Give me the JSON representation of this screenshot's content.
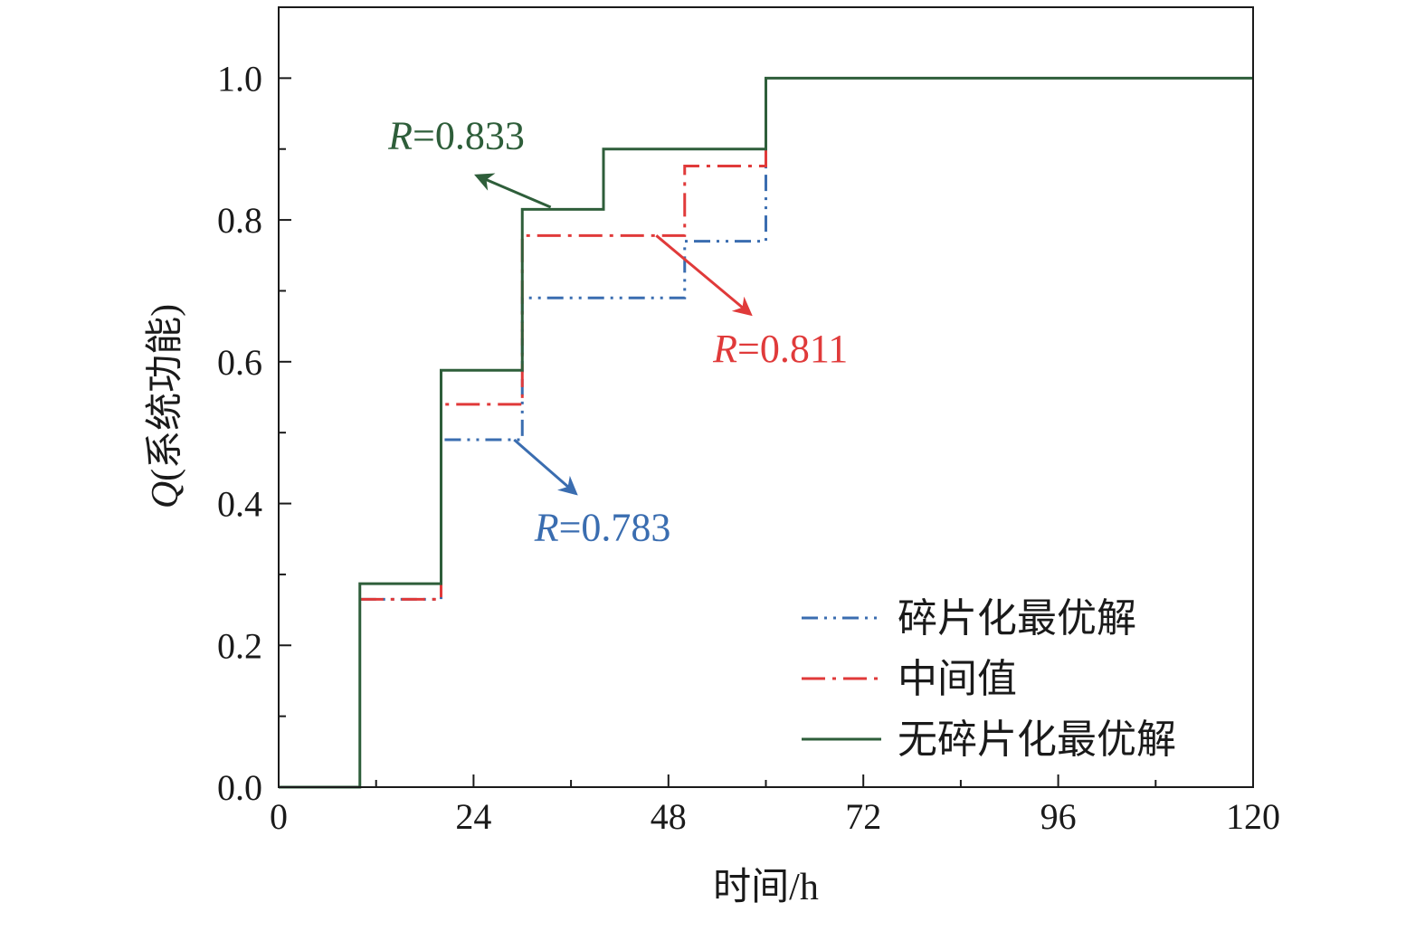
{
  "chart_data": {
    "type": "line",
    "line_shape": "step",
    "xlabel": "时间/h",
    "ylabel_var": "Q",
    "ylabel_text": "(系统功能)",
    "xlim": [
      0,
      120
    ],
    "ylim": [
      0,
      1.1
    ],
    "xticks": [
      0,
      24,
      48,
      72,
      96,
      120
    ],
    "xtick_labels": [
      "0",
      "24",
      "48",
      "72",
      "96",
      "120"
    ],
    "yticks": [
      0.0,
      0.2,
      0.4,
      0.6,
      0.8,
      1.0
    ],
    "ytick_labels": [
      "0.0",
      "0.2",
      "0.4",
      "0.6",
      "0.8",
      "1.0"
    ],
    "grid": false,
    "legend_position": "bottom-right",
    "series": [
      {
        "name": "碎片化最优解",
        "color": "#3a6db0",
        "dash": "dash-dot-dot",
        "x": [
          10,
          20,
          30,
          50,
          60
        ],
        "y": [
          0.265,
          0.49,
          0.69,
          0.77,
          0.9
        ]
      },
      {
        "name": "中间值",
        "color": "#e03a3a",
        "dash": "dash-dot",
        "x": [
          10,
          20,
          30,
          50,
          60
        ],
        "y": [
          0.265,
          0.54,
          0.778,
          0.876,
          0.9
        ]
      },
      {
        "name": "无碎片化最优解",
        "color": "#2e5e3a",
        "dash": "solid",
        "x": [
          0,
          10,
          20,
          30,
          40,
          60,
          120
        ],
        "y": [
          0,
          0.287,
          0.588,
          0.815,
          0.9,
          1.0,
          1.0
        ]
      }
    ],
    "annotations": [
      {
        "var": "R",
        "text": "=0.833",
        "color": "#2e5e3a",
        "label_at": [
          13.5,
          0.9
        ],
        "arrow_from": [
          33.5,
          0.818
        ],
        "arrow_to": [
          24.5,
          0.862
        ]
      },
      {
        "var": "R",
        "text": "=0.811",
        "color": "#e03a3a",
        "label_at": [
          53.5,
          0.6
        ],
        "arrow_from": [
          46.5,
          0.778
        ],
        "arrow_to": [
          58,
          0.668
        ]
      },
      {
        "var": "R",
        "text": "=0.783",
        "color": "#3a6db0",
        "label_at": [
          31.5,
          0.348
        ],
        "arrow_from": [
          29,
          0.49
        ],
        "arrow_to": [
          36.5,
          0.415
        ]
      }
    ]
  }
}
